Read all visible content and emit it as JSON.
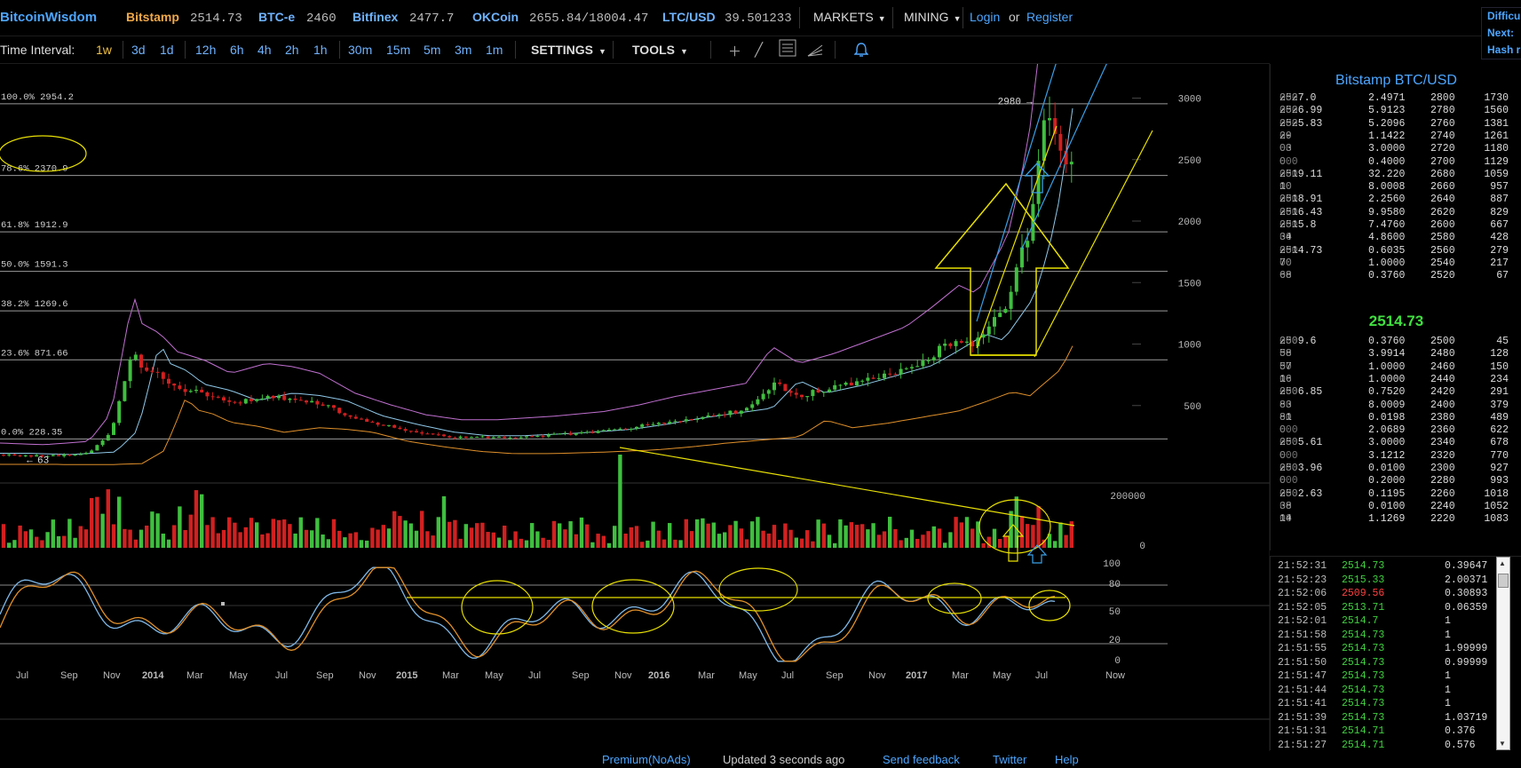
{
  "header": {
    "logo": "BitcoinWisdom",
    "tickers": [
      {
        "name": "Bitstamp",
        "value": "2514.73"
      },
      {
        "name": "BTC-e",
        "value": "2460"
      },
      {
        "name": "Bitfinex",
        "value": "2477.7"
      },
      {
        "name": "OKCoin",
        "value": "2655.84/18004.47"
      },
      {
        "name": "LTC/USD",
        "value": "39.501233"
      }
    ],
    "markets_label": "MARKETS",
    "mining_label": "MINING",
    "login_label": "Login",
    "or_label": "or",
    "register_label": "Register"
  },
  "side_info": [
    "Difficu",
    "Next:",
    "Hash r"
  ],
  "toolbar": {
    "time_interval_label": "Time Interval:",
    "intervals": [
      "1w",
      "3d",
      "1d",
      "12h",
      "6h",
      "4h",
      "2h",
      "1h",
      "30m",
      "15m",
      "5m",
      "3m",
      "1m"
    ],
    "active_interval": "1w",
    "settings_label": "SETTINGS",
    "tools_label": "TOOLS",
    "icons": [
      "plus-icon",
      "line-icon",
      "menu-icon",
      "fan-icon",
      "bell-icon"
    ]
  },
  "chart_data": {
    "type": "candlestick",
    "title": "",
    "price_axis_ticks": [
      "3000",
      "2500",
      "2000",
      "1500",
      "1000",
      "500"
    ],
    "volume_axis_ticks": [
      "200000",
      "0"
    ],
    "stoch_axis_ticks": [
      "100",
      "80",
      "50",
      "20",
      "0"
    ],
    "time_axis_labels": [
      "Jul",
      "Sep",
      "Nov",
      "2014",
      "Mar",
      "May",
      "Jul",
      "Sep",
      "Nov",
      "2015",
      "Mar",
      "May",
      "Jul",
      "Sep",
      "Nov",
      "2016",
      "Mar",
      "May",
      "Jul",
      "Sep",
      "Nov",
      "2017",
      "Mar",
      "May",
      "Jul",
      "Now"
    ],
    "fib_levels": [
      {
        "label": "100.0% 2954.2",
        "price": 2954.2
      },
      {
        "label": "78.6% 2370.9",
        "price": 2370.9
      },
      {
        "label": "61.8% 1912.9",
        "price": 1912.9
      },
      {
        "label": "50.0% 1591.3",
        "price": 1591.3
      },
      {
        "label": "38.2% 1269.6",
        "price": 1269.6
      },
      {
        "label": "23.6% 871.66",
        "price": 871.66
      },
      {
        "label": "0.0% 228.35",
        "price": 228.35
      }
    ],
    "high_marker": "2980",
    "low_marker": "63",
    "price_range": [
      0,
      3200
    ],
    "stoch_range": [
      0,
      100
    ],
    "colors": {
      "up": "#3fbf3f",
      "down": "#d22020",
      "bb_upper": "#c070d0",
      "bb_mid": "#8fc8e8",
      "bb_lower": "#e0902a",
      "stoch_k": "#7fb8e8",
      "stoch_d": "#e0902a",
      "annotation_yellow": "#e8e000",
      "annotation_blue": "#3aa0e8"
    }
  },
  "orderbook": {
    "title": "Bitstamp BTC/USD",
    "asks": [
      {
        "price": "2527.0",
        "dim": "000",
        "amount": "2.4971",
        "total": "2800",
        "cum": "1730"
      },
      {
        "price": "2526.99",
        "dim": "000",
        "amount": "5.9123",
        "total": "2780",
        "cum": "1560"
      },
      {
        "price": "2525.83",
        "dim": "000",
        "amount": "5.2096",
        "total": "2760",
        "cum": "1381"
      },
      {
        "price": "29",
        "dim": "00",
        "amount": "1.1422",
        "total": "2740",
        "cum": "1261"
      },
      {
        "price": "03",
        "dim": "00",
        "amount": "3.0000",
        "total": "2720",
        "cum": "1180"
      },
      {
        "price": "0",
        "dim": "000",
        "amount": "0.4000",
        "total": "2700",
        "cum": "1129"
      },
      {
        "price": "2519.11",
        "dim": "000",
        "amount": "32.220",
        "total": "2680",
        "cum": "1059"
      },
      {
        "price": "10",
        "dim": "00",
        "amount": "8.0008",
        "total": "2660",
        "cum": "957"
      },
      {
        "price": "2518.91",
        "dim": "000",
        "amount": "2.2560",
        "total": "2640",
        "cum": "887"
      },
      {
        "price": "2516.43",
        "dim": "000",
        "amount": "9.9580",
        "total": "2620",
        "cum": "829"
      },
      {
        "price": "2515.8",
        "dim": "000",
        "amount": "7.4760",
        "total": "2600",
        "cum": "667"
      },
      {
        "price": "34",
        "dim": "00",
        "amount": "4.8600",
        "total": "2580",
        "cum": "428"
      },
      {
        "price": "2514.73",
        "dim": "000",
        "amount": "0.6035",
        "total": "2560",
        "cum": "279"
      },
      {
        "price": "70",
        "dim": "00",
        "amount": "1.0000",
        "total": "2540",
        "cum": "217"
      },
      {
        "price": "68",
        "dim": "00",
        "amount": "0.3760",
        "total": "2520",
        "cum": "67"
      }
    ],
    "last_price": "2514.73",
    "bids": [
      {
        "price": "2509.6",
        "dim": "000",
        "amount": "0.3760",
        "total": "2500",
        "cum": "45"
      },
      {
        "price": "58",
        "dim": "00",
        "amount": "3.9914",
        "total": "2480",
        "cum": "128"
      },
      {
        "price": "57",
        "dim": "00",
        "amount": "1.0000",
        "total": "2460",
        "cum": "150"
      },
      {
        "price": "16",
        "dim": "00",
        "amount": "1.0000",
        "total": "2440",
        "cum": "234"
      },
      {
        "price": "2506.85",
        "dim": "000",
        "amount": "0.7520",
        "total": "2420",
        "cum": "291"
      },
      {
        "price": "83",
        "dim": "00",
        "amount": "8.0009",
        "total": "2400",
        "cum": "379"
      },
      {
        "price": "81",
        "dim": "00",
        "amount": "0.0198",
        "total": "2380",
        "cum": "489"
      },
      {
        "price": "0",
        "dim": "000",
        "amount": "2.0689",
        "total": "2360",
        "cum": "622"
      },
      {
        "price": "2505.61",
        "dim": "000",
        "amount": "3.0000",
        "total": "2340",
        "cum": "678"
      },
      {
        "price": "0",
        "dim": "000",
        "amount": "3.1212",
        "total": "2320",
        "cum": "770"
      },
      {
        "price": "2503.96",
        "dim": "000",
        "amount": "0.0100",
        "total": "2300",
        "cum": "927"
      },
      {
        "price": "0",
        "dim": "000",
        "amount": "0.2000",
        "total": "2280",
        "cum": "993"
      },
      {
        "price": "2502.63",
        "dim": "000",
        "amount": "0.1195",
        "total": "2260",
        "cum": "1018"
      },
      {
        "price": "38",
        "dim": "00",
        "amount": "0.0100",
        "total": "2240",
        "cum": "1052"
      },
      {
        "price": "14",
        "dim": "00",
        "amount": "1.1269",
        "total": "2220",
        "cum": "1083"
      }
    ]
  },
  "trades": [
    {
      "time": "21:52:31",
      "price": "2514.73",
      "amount": "0.39647",
      "dir": "up"
    },
    {
      "time": "21:52:23",
      "price": "2515.33",
      "amount": "2.00371",
      "dir": "up"
    },
    {
      "time": "21:52:06",
      "price": "2509.56",
      "amount": "0.30893",
      "dir": "down"
    },
    {
      "time": "21:52:05",
      "price": "2513.71",
      "amount": "0.06359",
      "dir": "up"
    },
    {
      "time": "21:52:01",
      "price": "2514.7",
      "amount": "1",
      "dir": "up"
    },
    {
      "time": "21:51:58",
      "price": "2514.73",
      "amount": "1",
      "dir": "up"
    },
    {
      "time": "21:51:55",
      "price": "2514.73",
      "amount": "1.99999",
      "dir": "up"
    },
    {
      "time": "21:51:50",
      "price": "2514.73",
      "amount": "0.99999",
      "dir": "up"
    },
    {
      "time": "21:51:47",
      "price": "2514.73",
      "amount": "1",
      "dir": "up"
    },
    {
      "time": "21:51:44",
      "price": "2514.73",
      "amount": "1",
      "dir": "up"
    },
    {
      "time": "21:51:41",
      "price": "2514.73",
      "amount": "1",
      "dir": "up"
    },
    {
      "time": "21:51:39",
      "price": "2514.73",
      "amount": "1.03719",
      "dir": "up"
    },
    {
      "time": "21:51:31",
      "price": "2514.71",
      "amount": "0.376",
      "dir": "up"
    },
    {
      "time": "21:51:27",
      "price": "2514.71",
      "amount": "0.576",
      "dir": "up"
    }
  ],
  "footer": {
    "premium_label": "Premium(NoAds)",
    "updated_label": "Updated 3 seconds ago",
    "feedback_label": "Send feedback",
    "twitter_label": "Twitter",
    "help_label": "Help"
  }
}
